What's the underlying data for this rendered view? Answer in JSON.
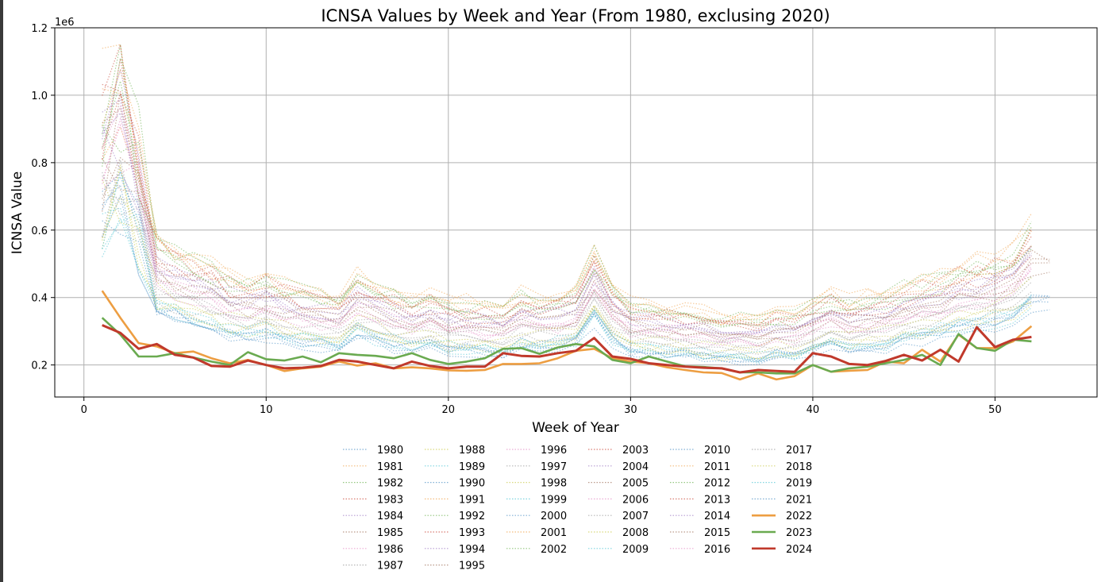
{
  "chart_data": {
    "type": "line",
    "title": "ICNSA Values by Week and Year (From 1980, exclusing 2020)",
    "xlabel": "Week of Year",
    "ylabel": "ICNSA Value",
    "y_offset_label": "1e6",
    "xlim": [
      -1.6,
      55.6
    ],
    "ylim": [
      105000,
      1200000
    ],
    "x_ticks": [
      0,
      10,
      20,
      30,
      40,
      50
    ],
    "x_tick_labels": [
      "0",
      "10",
      "20",
      "30",
      "40",
      "50"
    ],
    "y_ticks": [
      200000,
      400000,
      600000,
      800000,
      1000000,
      1200000
    ],
    "y_tick_labels": [
      "0.2",
      "0.4",
      "0.6",
      "0.8",
      "1.0",
      "1.2"
    ],
    "grid": true,
    "legend": {
      "placement": "bottom-center",
      "columns": [
        [
          "1980",
          "1981",
          "1982",
          "1983",
          "1984",
          "1985",
          "1986",
          "1987"
        ],
        [
          "1988",
          "1989",
          "1990",
          "1991",
          "1992",
          "1993",
          "1994",
          "1995"
        ],
        [
          "1996",
          "1997",
          "1998",
          "1999",
          "2000",
          "2001",
          "2002"
        ],
        [
          "2003",
          "2004",
          "2005",
          "2006",
          "2007",
          "2008",
          "2009"
        ],
        [
          "2010",
          "2011",
          "2012",
          "2013",
          "2014",
          "2015",
          "2016"
        ],
        [
          "2017",
          "2018",
          "2019",
          "2021",
          "2022",
          "2023",
          "2024"
        ]
      ]
    },
    "palette": [
      "#4c8fc4",
      "#f0a24a",
      "#6ab04c",
      "#c94a3a",
      "#9a76c1",
      "#a0715b",
      "#e38ac2",
      "#9a9a9a",
      "#c9c94a",
      "#4cc4d4"
    ],
    "background_years": [
      "1980",
      "1981",
      "1982",
      "1983",
      "1984",
      "1985",
      "1986",
      "1987",
      "1988",
      "1989",
      "1990",
      "1991",
      "1992",
      "1993",
      "1994",
      "1995",
      "1996",
      "1997",
      "1998",
      "1999",
      "2000",
      "2001",
      "2002",
      "2003",
      "2004",
      "2005",
      "2006",
      "2007",
      "2008",
      "2009",
      "2010",
      "2011",
      "2012",
      "2013",
      "2014",
      "2015",
      "2016",
      "2017",
      "2018",
      "2019",
      "2021"
    ],
    "background_base": [
      620000,
      680000,
      560000,
      450000,
      420000,
      405000,
      390000,
      360000,
      350000,
      360000,
      340000,
      330000,
      320000,
      310000,
      360000,
      340000,
      320000,
      310000,
      320000,
      300000,
      300000,
      295000,
      285000,
      320000,
      310000,
      315000,
      330000,
      420000,
      340000,
      300000,
      295000,
      290000,
      285000,
      275000,
      270000,
      270000,
      265000,
      280000,
      275000,
      300000,
      320000,
      300000,
      310000,
      320000,
      340000,
      350000,
      360000,
      380000,
      390000,
      400000,
      420000,
      470000,
      480000
    ],
    "highlight_series": [
      {
        "name": "2022",
        "color": "#ed9e42",
        "values": [
          420000,
          340000,
          265000,
          255000,
          235000,
          240000,
          220000,
          205000,
          215000,
          200000,
          182000,
          190000,
          195000,
          210000,
          198000,
          205000,
          190000,
          193000,
          190000,
          184000,
          183000,
          185000,
          203000,
          203000,
          205000,
          220000,
          242000,
          248000,
          220000,
          210000,
          205000,
          193000,
          185000,
          178000,
          176000,
          157000,
          175000,
          157000,
          167000,
          200000,
          180000,
          183000,
          185000,
          210000,
          205000,
          245000,
          210000,
          290000,
          250000,
          250000,
          270000,
          315000
        ]
      },
      {
        "name": "2023",
        "color": "#6aaa50",
        "values": [
          340000,
          290000,
          225000,
          225000,
          235000,
          222000,
          210000,
          200000,
          238000,
          217000,
          213000,
          225000,
          208000,
          235000,
          230000,
          227000,
          220000,
          235000,
          215000,
          203000,
          210000,
          220000,
          248000,
          250000,
          233000,
          252000,
          262000,
          255000,
          215000,
          205000,
          225000,
          210000,
          196000,
          194000,
          190000,
          178000,
          178000,
          175000,
          175000,
          200000,
          180000,
          190000,
          195000,
          205000,
          215000,
          230000,
          200000,
          292000,
          250000,
          242000,
          275000,
          270000
        ]
      },
      {
        "name": "2024",
        "color": "#c0392b",
        "values": [
          318000,
          295000,
          248000,
          262000,
          230000,
          222000,
          197000,
          195000,
          213000,
          200000,
          190000,
          192000,
          197000,
          215000,
          210000,
          200000,
          190000,
          210000,
          197000,
          190000,
          195000,
          195000,
          235000,
          227000,
          225000,
          235000,
          242000,
          280000,
          225000,
          218000,
          205000,
          200000,
          195000,
          192000,
          190000,
          178000,
          185000,
          182000,
          180000,
          235000,
          225000,
          203000,
          200000,
          212000,
          230000,
          213000,
          245000,
          210000,
          312000,
          253000,
          275000,
          283000
        ]
      }
    ]
  }
}
